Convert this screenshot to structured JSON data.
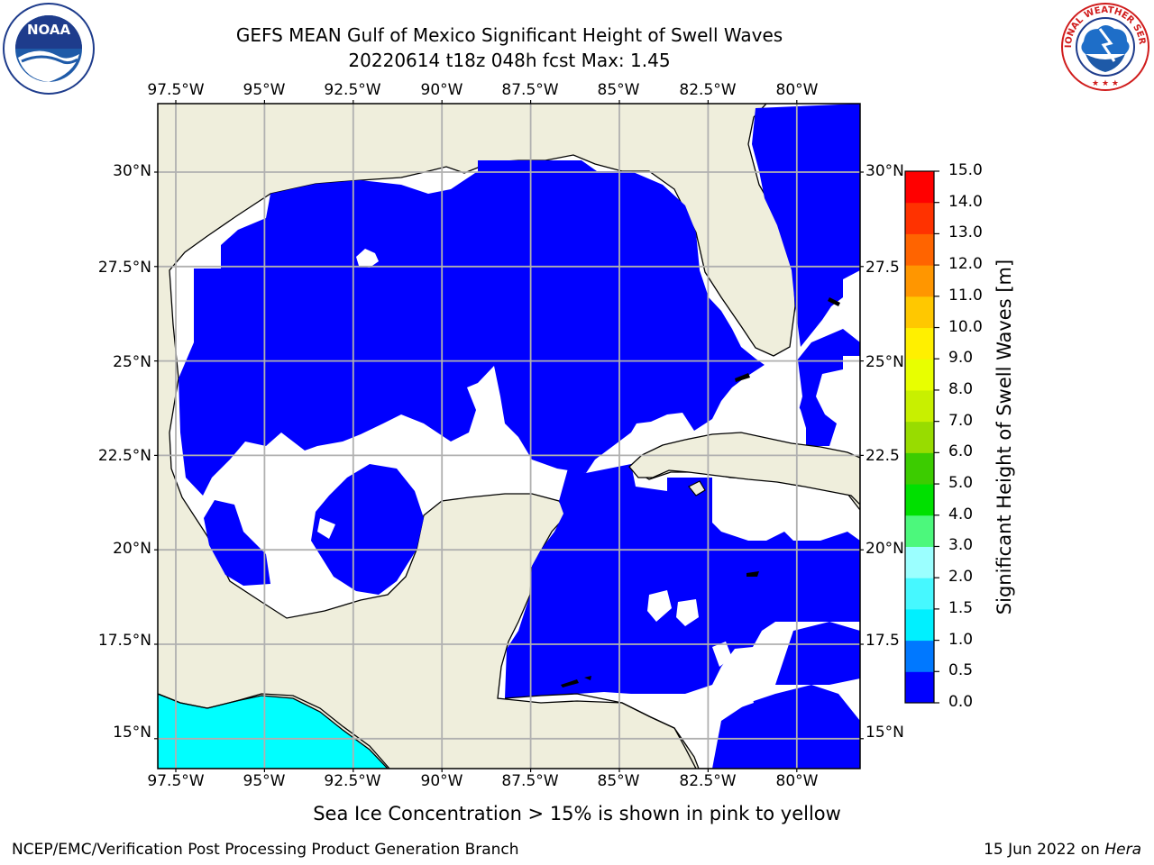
{
  "header": {
    "title_line1": "GEFS MEAN Gulf of Mexico Significant Height of Swell Waves",
    "title_line2": "20220614 t18z 048h fcst   Max: 1.45"
  },
  "logos": {
    "left": {
      "name": "NOAA",
      "ring_text": "NATIONAL OCEANIC AND ATMOSPHERIC ADMINISTRATION · U.S. DEPARTMENT OF COMMERCE",
      "icon": "noaa-logo"
    },
    "right": {
      "name": "NATIONAL WEATHER SERVICE",
      "icon": "nws-logo"
    }
  },
  "map": {
    "lon_ticks": [
      "97.5°W",
      "95°W",
      "92.5°W",
      "90°W",
      "87.5°W",
      "85°W",
      "82.5°W",
      "80°W"
    ],
    "lat_ticks_left": [
      "30°N",
      "27.5°N",
      "25°N",
      "22.5°N",
      "20°N",
      "17.5°N",
      "15°N"
    ],
    "lat_ticks_right": [
      "30°N",
      "27.5",
      "25°N",
      "22.5",
      "20°N",
      "17.5",
      "15°N"
    ],
    "lon_values": [
      -97.5,
      -95,
      -92.5,
      -90,
      -87.5,
      -85,
      -82.5,
      -80
    ],
    "lat_values": [
      30,
      27.5,
      25,
      22.5,
      20,
      17.5,
      15
    ],
    "land_color": "#efeedc",
    "grid_color": "#b0b0b0",
    "gridlines": true,
    "max_value": 1.45
  },
  "colorbar": {
    "label": "Significant Height of Swell Waves [m]",
    "ticks": [
      "0.0",
      "0.5",
      "1.0",
      "1.5",
      "2.0",
      "3.0",
      "4.0",
      "5.0",
      "6.0",
      "7.0",
      "8.0",
      "9.0",
      "10.0",
      "11.0",
      "12.0",
      "13.0",
      "14.0",
      "15.0"
    ],
    "colors": [
      "#0000ff",
      "#0078ff",
      "#00f0ff",
      "#46f8ff",
      "#9bffff",
      "#4cf87c",
      "#00e000",
      "#3ccc00",
      "#98dc00",
      "#c8f000",
      "#e8ff00",
      "#fff000",
      "#ffc800",
      "#ff9600",
      "#ff6400",
      "#ff3200",
      "#ff0000"
    ]
  },
  "notes": {
    "sea_ice": "Sea Ice Concentration > 15% is shown in pink to yellow",
    "credit": "NCEP/EMC/Verification Post Processing Product Generation Branch",
    "date_prefix": "15 Jun 2022 on ",
    "date_machine": "Hera"
  }
}
